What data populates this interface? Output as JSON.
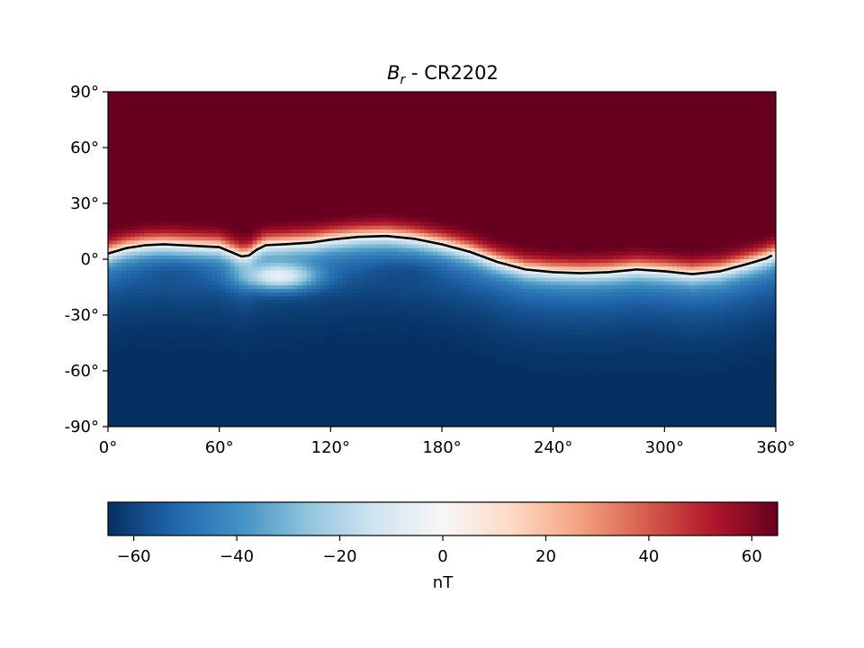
{
  "chart_data": {
    "type": "heatmap",
    "title": {
      "symbol": "B",
      "subscript": "r",
      "suffix": " - CR2202"
    },
    "xlabel": "",
    "ylabel": "",
    "xlim": [
      0,
      360
    ],
    "ylim": [
      -90,
      90
    ],
    "x_ticks": [
      0,
      60,
      120,
      180,
      240,
      300,
      360
    ],
    "x_tick_labels": [
      "0°",
      "60°",
      "120°",
      "180°",
      "240°",
      "300°",
      "360°"
    ],
    "y_ticks": [
      90,
      60,
      30,
      0,
      -30,
      -60,
      -90
    ],
    "y_tick_labels": [
      "90°",
      "60°",
      "30°",
      "0°",
      "-30°",
      "-60°",
      "-90°"
    ],
    "colormap": "RdBu_r",
    "colormap_stops": [
      "#053061",
      "#2166ac",
      "#4393c3",
      "#92c5de",
      "#d1e5f0",
      "#f7f7f7",
      "#fddbc7",
      "#f4a582",
      "#d6604d",
      "#b2182b",
      "#67001f"
    ],
    "clim": [
      -65,
      65
    ],
    "colorbar": {
      "label": "nT",
      "ticks": [
        -60,
        -40,
        -20,
        0,
        20,
        40,
        60
      ],
      "tick_labels": [
        "−60",
        "−40",
        "−20",
        "0",
        "20",
        "40",
        "60"
      ]
    },
    "neutral_line": {
      "lon": [
        0,
        10,
        20,
        30,
        40,
        50,
        60,
        66,
        72,
        76,
        80,
        85,
        95,
        110,
        120,
        135,
        150,
        165,
        180,
        195,
        210,
        225,
        240,
        255,
        270,
        285,
        300,
        315,
        330,
        345,
        355,
        358
      ],
      "lat": [
        3,
        6,
        7.5,
        8,
        7.5,
        7,
        6.5,
        4,
        1.5,
        2,
        5,
        7.5,
        8,
        9,
        10.5,
        12,
        12.5,
        11,
        8,
        4,
        -1.5,
        -5.5,
        -7,
        -7.5,
        -7,
        -5.5,
        -6.5,
        -8,
        -6.5,
        -2.5,
        0.5,
        2
      ]
    },
    "field_features": [
      {
        "lon": 35,
        "lat": -8,
        "value": -58
      },
      {
        "lon": 92,
        "lat": -9,
        "value": -5
      },
      {
        "lon": 160,
        "lat": -8,
        "value": -60
      },
      {
        "lon": 225,
        "lat": 25,
        "value": 70
      }
    ]
  }
}
